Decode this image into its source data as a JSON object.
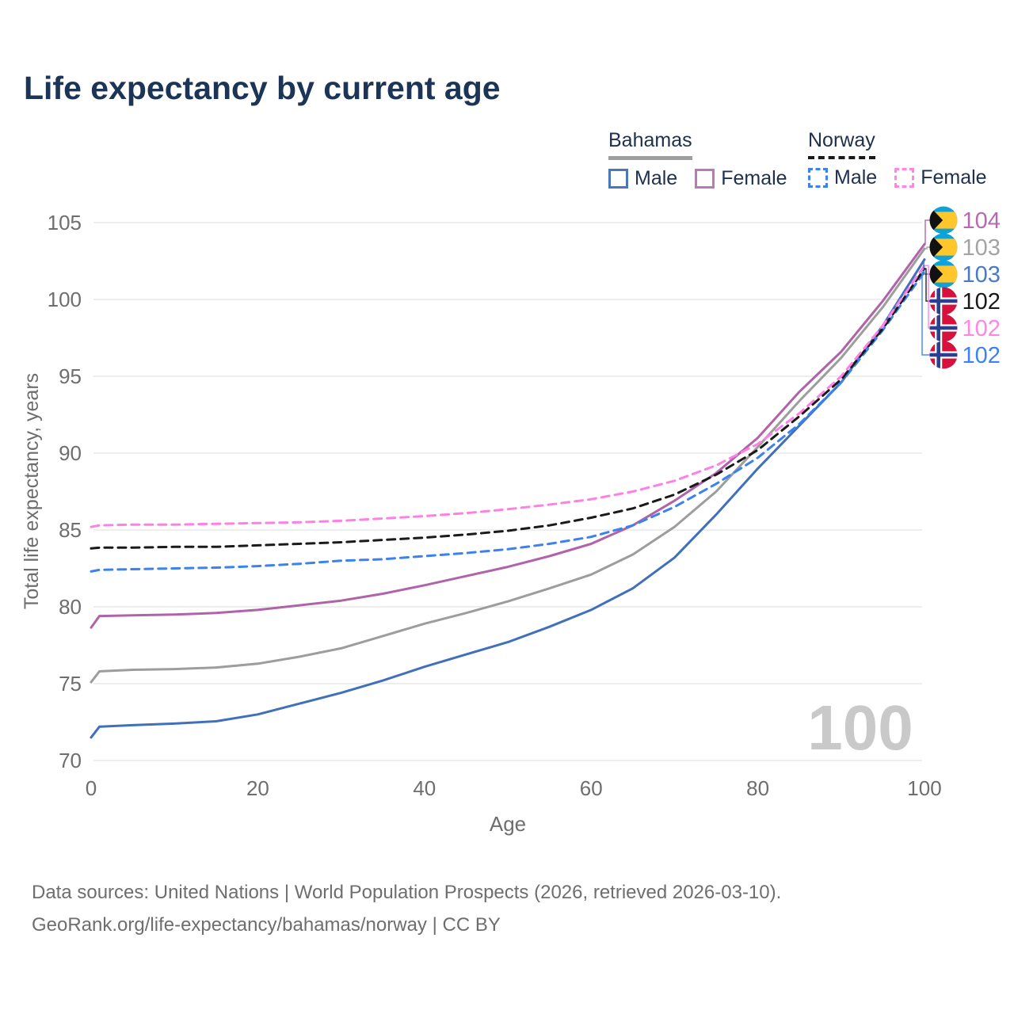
{
  "title": "Life expectancy by current age",
  "legend": {
    "groups": [
      {
        "name": "Bahamas",
        "line_style": "solid",
        "underline_color": "#9e9e9e",
        "items": [
          {
            "label": "Male",
            "color": "#4a76bc"
          },
          {
            "label": "Female",
            "color": "#bb79b5"
          }
        ]
      },
      {
        "name": "Norway",
        "line_style": "dashed",
        "underline_color": "#191919",
        "items": [
          {
            "label": "Male",
            "color": "#3b82ee"
          },
          {
            "label": "Female",
            "color": "#ff85e6"
          }
        ]
      }
    ]
  },
  "watermark": "100",
  "footer": {
    "line1": "Data sources: United Nations | World Population Prospects (2026, retrieved 2026-03-10).",
    "line2": "GeoRank.org/life-expectancy/bahamas/norway | CC BY"
  },
  "flag_colors": {
    "bahamas_aqua": "#0ea2d8",
    "bahamas_gold": "#ffc72c",
    "bahamas_black": "#111111",
    "norway_red": "#d6113c",
    "norway_blue": "#2b3f8f",
    "norway_white": "#ffffff"
  },
  "chart_data": {
    "type": "line",
    "title": "Life expectancy by current age",
    "xlabel": "Age",
    "ylabel": "Total life expectancy, years",
    "xlim": [
      0,
      100
    ],
    "ylim": [
      70,
      105
    ],
    "x_ticks": [
      0,
      20,
      40,
      60,
      80,
      100
    ],
    "y_ticks": [
      70,
      75,
      80,
      85,
      90,
      95,
      100,
      105
    ],
    "grid": true,
    "legend_position": "top-right",
    "x": [
      0,
      1,
      5,
      10,
      15,
      20,
      25,
      30,
      35,
      40,
      45,
      50,
      55,
      60,
      65,
      70,
      75,
      80,
      85,
      90,
      95,
      100
    ],
    "series": [
      {
        "name": "Bahamas Male",
        "country": "Bahamas",
        "sex": "Male",
        "color": "#4170bb",
        "dash": false,
        "values": [
          71.5,
          72.2,
          72.3,
          72.4,
          72.55,
          73.0,
          73.7,
          74.4,
          75.2,
          76.1,
          76.9,
          77.7,
          78.7,
          79.8,
          81.2,
          83.2,
          86.0,
          89.0,
          91.8,
          94.6,
          98.3,
          102.6
        ],
        "end_label": {
          "text": "103",
          "flag": "bahamas",
          "row": 2,
          "label_color": "#4a79c8"
        }
      },
      {
        "name": "Bahamas Total",
        "country": "Bahamas",
        "sex": "Total",
        "color": "#9d9d9d",
        "dash": false,
        "values": [
          75.1,
          75.8,
          75.9,
          75.95,
          76.05,
          76.3,
          76.75,
          77.3,
          78.1,
          78.9,
          79.6,
          80.35,
          81.2,
          82.1,
          83.4,
          85.2,
          87.5,
          90.4,
          93.4,
          96.2,
          99.5,
          103.3
        ],
        "end_label": {
          "text": "103",
          "flag": "bahamas",
          "row": 1,
          "label_color": "#a3a3a3"
        }
      },
      {
        "name": "Bahamas Female",
        "country": "Bahamas",
        "sex": "Female",
        "color": "#b063a8",
        "dash": false,
        "values": [
          78.65,
          79.4,
          79.45,
          79.5,
          79.6,
          79.8,
          80.1,
          80.4,
          80.85,
          81.4,
          82.0,
          82.6,
          83.3,
          84.1,
          85.3,
          86.9,
          88.7,
          91.0,
          94.0,
          96.6,
          99.9,
          103.6
        ],
        "end_label": {
          "text": "104",
          "flag": "bahamas",
          "row": 0,
          "label_color": "#b569ae"
        }
      },
      {
        "name": "Norway Male",
        "country": "Norway",
        "sex": "Male",
        "color": "#3b82ee",
        "dash": true,
        "values": [
          82.3,
          82.4,
          82.45,
          82.5,
          82.55,
          82.65,
          82.8,
          83.0,
          83.1,
          83.3,
          83.5,
          83.75,
          84.1,
          84.55,
          85.3,
          86.5,
          88.0,
          89.7,
          91.9,
          94.6,
          98.0,
          101.8
        ],
        "end_label": {
          "text": "102",
          "flag": "norway",
          "row": 5,
          "label_color": "#3c82f0"
        }
      },
      {
        "name": "Norway Total",
        "country": "Norway",
        "sex": "Total",
        "color": "#1a1a1a",
        "dash": true,
        "values": [
          83.8,
          83.85,
          83.85,
          83.9,
          83.9,
          84.0,
          84.1,
          84.2,
          84.35,
          84.5,
          84.7,
          84.95,
          85.3,
          85.8,
          86.4,
          87.3,
          88.6,
          90.2,
          92.4,
          94.8,
          98.1,
          102.0
        ],
        "end_label": {
          "text": "102",
          "flag": "norway",
          "row": 3,
          "label_color": "#1a1a1a"
        }
      },
      {
        "name": "Norway Female",
        "country": "Norway",
        "sex": "Female",
        "color": "#ff80e5",
        "dash": true,
        "values": [
          85.2,
          85.3,
          85.35,
          85.35,
          85.4,
          85.45,
          85.5,
          85.6,
          85.75,
          85.9,
          86.1,
          86.35,
          86.65,
          87.0,
          87.5,
          88.2,
          89.2,
          90.6,
          92.6,
          95.0,
          98.3,
          102.2
        ],
        "end_label": {
          "text": "102",
          "flag": "norway",
          "row": 4,
          "label_color": "#ff85e8"
        }
      }
    ]
  }
}
